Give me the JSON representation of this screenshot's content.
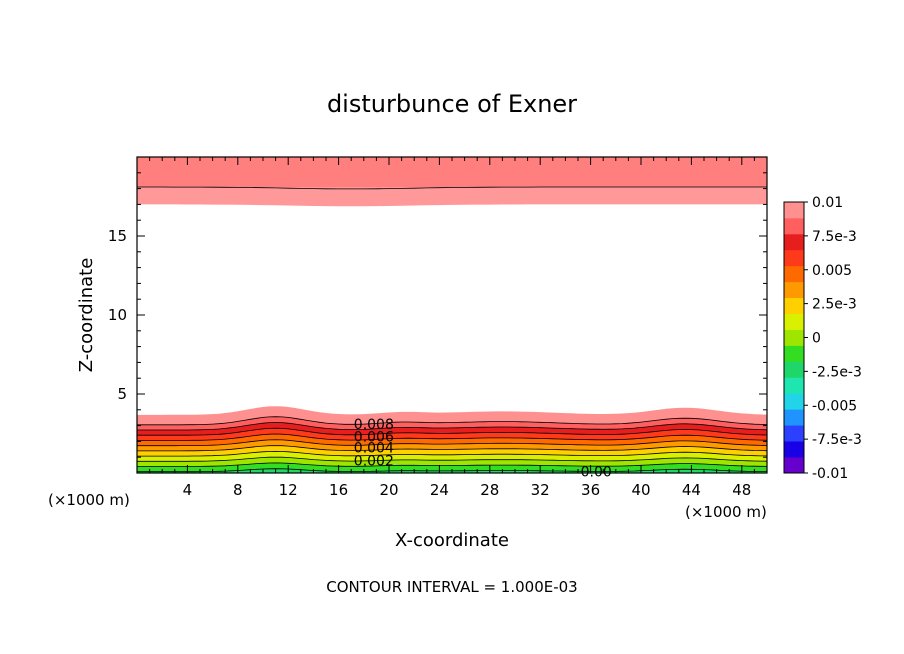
{
  "chart_data": {
    "type": "filled-contour",
    "title": "disturbunce of Exner",
    "xlabel": "X-coordinate",
    "ylabel": "Z-coordinate",
    "x_unit": "(×1000 m)",
    "y_unit": "(×1000 m)",
    "xlim": [
      0,
      50
    ],
    "ylim": [
      0,
      20
    ],
    "x_ticks": [
      "4",
      "8",
      "12",
      "16",
      "20",
      "24",
      "28",
      "32",
      "36",
      "40",
      "44",
      "48"
    ],
    "y_ticks": [
      "5",
      "10",
      "15"
    ],
    "contour_interval_text": "CONTOUR INTERVAL = 1.000E-03",
    "contour_labels": [
      {
        "text": "0.008",
        "x": 18,
        "z": 3.1
      },
      {
        "text": "0.006",
        "x": 18,
        "z": 2.3
      },
      {
        "text": "0.004",
        "x": 18,
        "z": 1.6
      },
      {
        "text": "0.002",
        "x": 18,
        "z": 0.8
      },
      {
        "text": "0.00",
        "x": 36,
        "z": 0.1
      }
    ],
    "colorbar": {
      "min": -0.01,
      "max": 0.01,
      "tick_labels": [
        "0.01",
        "7.5e-3",
        "0.005",
        "2.5e-3",
        "0",
        "-2.5e-3",
        "-0.005",
        "-7.5e-3",
        "-0.01"
      ],
      "colors": [
        "#6600cc",
        "#1a00e6",
        "#2c40ff",
        "#1f93ff",
        "#22d4e8",
        "#1fe6b0",
        "#1ed66a",
        "#33dd22",
        "#9ee600",
        "#d9f000",
        "#ffd000",
        "#ff9900",
        "#ff6a00",
        "#ff3a1a",
        "#e61e1e",
        "#ff5f5f",
        "#ff9090"
      ]
    },
    "surface_levels": [
      {
        "value": 0.0,
        "color": "#1ed66a"
      },
      {
        "value": 0.001,
        "color": "#33dd22"
      },
      {
        "value": 0.002,
        "color": "#9ee600"
      },
      {
        "value": 0.003,
        "color": "#d9f000"
      },
      {
        "value": 0.004,
        "color": "#ffd000"
      },
      {
        "value": 0.005,
        "color": "#ff9900"
      },
      {
        "value": 0.006,
        "color": "#ff6a00"
      },
      {
        "value": 0.007,
        "color": "#ff3a1a"
      },
      {
        "value": 0.008,
        "color": "#e61e1e"
      },
      {
        "value": 0.009,
        "color": "#ff5f5f"
      },
      {
        "value": 0.01,
        "color": "#ff9090"
      }
    ],
    "top_bands": [
      {
        "z_bottom": 18.1,
        "z_top": 20,
        "color": "#ff7f7f"
      },
      {
        "z_bottom": 17.0,
        "z_top": 18.1,
        "color": "#ff9898"
      }
    ]
  }
}
